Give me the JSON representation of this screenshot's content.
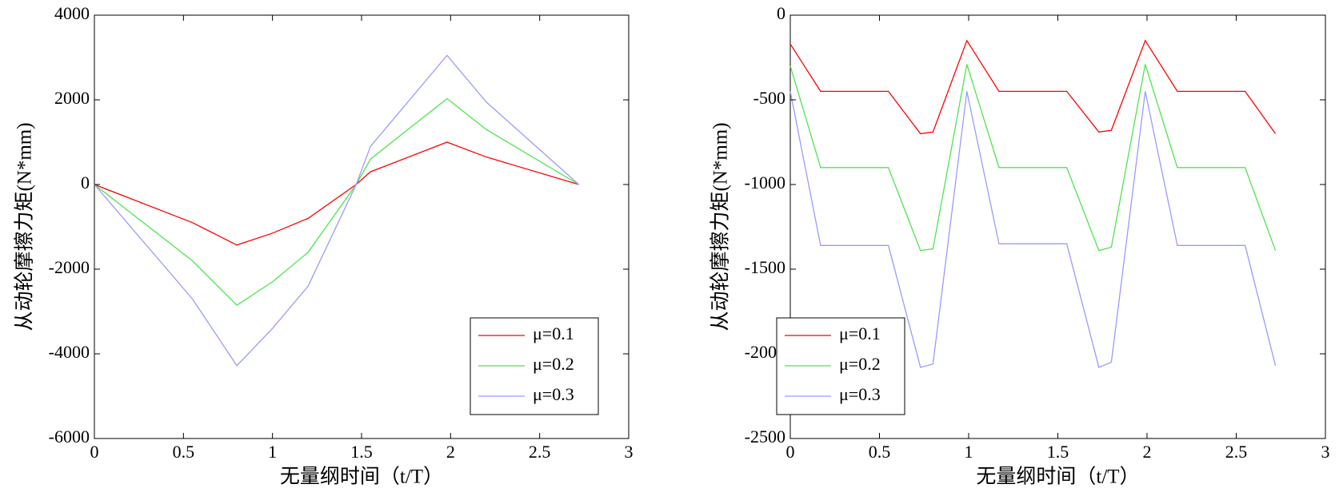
{
  "chart_data": [
    {
      "type": "line",
      "xlabel": "无量纲时间（t/T）",
      "ylabel": "从动轮摩擦力矩(N*mm)",
      "x": [
        0,
        0.55,
        0.8,
        1,
        1.2,
        1.47,
        1.55,
        1.98,
        2.2,
        2.72
      ],
      "series": [
        {
          "name": "μ=0.1",
          "color": "#ff0000",
          "values": [
            0,
            -900,
            -1430,
            -1150,
            -800,
            0,
            300,
            1000,
            650,
            0
          ]
        },
        {
          "name": "μ=0.2",
          "color": "#4ee44e",
          "values": [
            0,
            -1800,
            -2850,
            -2300,
            -1600,
            0,
            600,
            2030,
            1300,
            0
          ]
        },
        {
          "name": "μ=0.3",
          "color": "#9a9aff",
          "values": [
            0,
            -2700,
            -4280,
            -3400,
            -2400,
            0,
            900,
            3050,
            1950,
            0
          ]
        }
      ],
      "xlim": [
        0,
        3
      ],
      "xticks": [
        0,
        0.5,
        1,
        1.5,
        2,
        2.5,
        3
      ],
      "ylim": [
        -6000,
        4000
      ],
      "yticks": [
        -6000,
        -4000,
        -2000,
        0,
        2000,
        4000
      ],
      "legend": "lower right"
    },
    {
      "type": "line",
      "xlabel": "无量纲时间（t/T）",
      "ylabel": "从动轮摩擦力矩(N*mm)",
      "x": [
        0,
        0.17,
        0.55,
        0.73,
        0.8,
        0.99,
        1.17,
        1.55,
        1.73,
        1.8,
        1.99,
        2.17,
        2.55,
        2.72
      ],
      "series": [
        {
          "name": "μ=0.1",
          "color": "#ff0000",
          "values": [
            -170,
            -450,
            -450,
            -700,
            -690,
            -150,
            -450,
            -450,
            -690,
            -680,
            -150,
            -450,
            -450,
            -700
          ]
        },
        {
          "name": "μ=0.2",
          "color": "#4ee44e",
          "values": [
            -300,
            -900,
            -900,
            -1390,
            -1380,
            -290,
            -900,
            -900,
            -1390,
            -1370,
            -290,
            -900,
            -900,
            -1390
          ]
        },
        {
          "name": "μ=0.3",
          "color": "#9a9aff",
          "values": [
            -450,
            -1360,
            -1360,
            -2080,
            -2060,
            -450,
            -1350,
            -1350,
            -2080,
            -2050,
            -450,
            -1360,
            -1360,
            -2070
          ]
        }
      ],
      "xlim": [
        0,
        3
      ],
      "xticks": [
        0,
        0.5,
        1,
        1.5,
        2,
        2.5,
        3
      ],
      "ylim": [
        -2500,
        0
      ],
      "yticks": [
        -2500,
        -2000,
        -1500,
        -1000,
        -500,
        0
      ],
      "legend": "lower left"
    }
  ]
}
